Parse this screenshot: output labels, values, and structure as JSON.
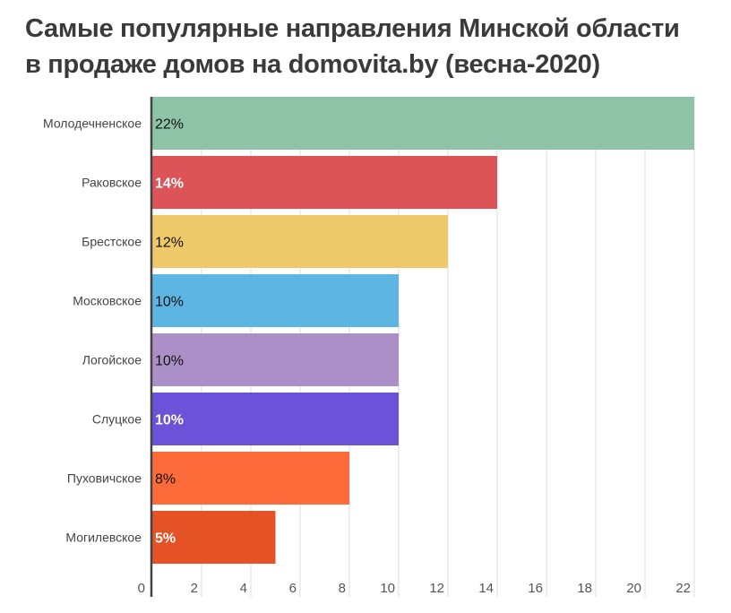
{
  "chart_data": {
    "type": "bar",
    "orientation": "horizontal",
    "title_lines": [
      "Самые популярные направления Минской области",
      "в продаже домов на domovita.by (весна-2020)"
    ],
    "categories": [
      "Молодечненское",
      "Раковское",
      "Брестское",
      "Московское",
      "Логойское",
      "Слуцкое",
      "Пуховичское",
      "Могилевское"
    ],
    "values": [
      22,
      14,
      12,
      10,
      10,
      10,
      8,
      5
    ],
    "data_labels": [
      "22%",
      "14%",
      "12%",
      "10%",
      "10%",
      "10%",
      "8%",
      "5%"
    ],
    "colors": [
      "#8fc3a8",
      "#dd5458",
      "#eeca6a",
      "#5db5e3",
      "#ab90c7",
      "#6b52d9",
      "#fd6b3a",
      "#e55226"
    ],
    "label_colors": [
      "#111111",
      "#ffffff",
      "#111111",
      "#111111",
      "#111111",
      "#ffffff",
      "#111111",
      "#ffffff"
    ],
    "xticks": [
      0,
      2,
      4,
      6,
      8,
      10,
      12,
      14,
      16,
      18,
      20,
      22
    ],
    "xlim": [
      0,
      22.2
    ],
    "xlabel": "",
    "ylabel": "",
    "grid": true
  }
}
